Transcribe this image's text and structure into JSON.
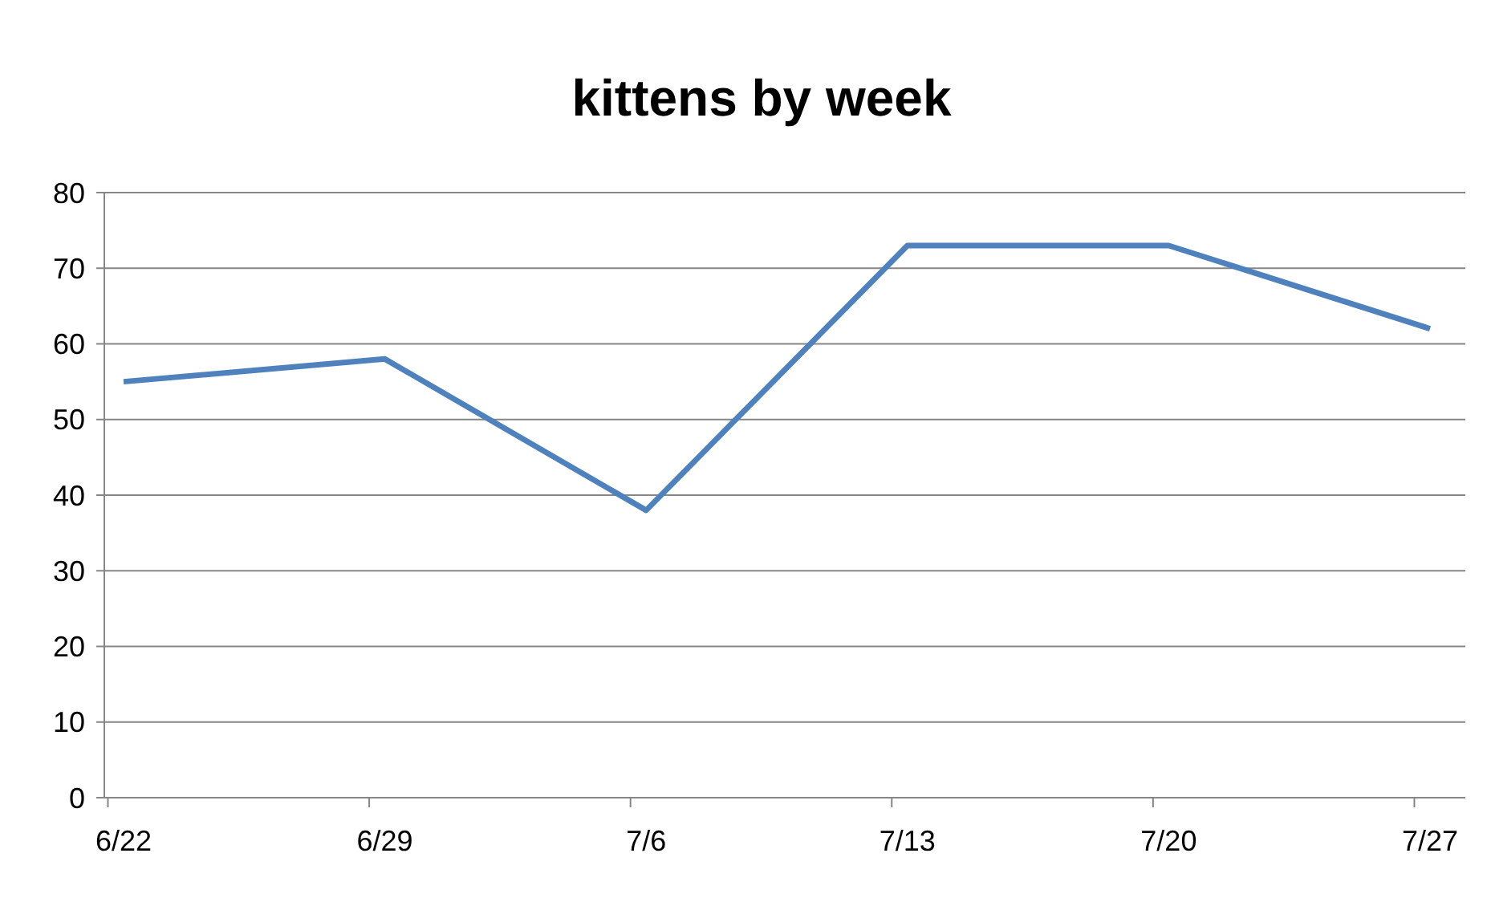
{
  "chart_data": {
    "type": "line",
    "title": "kittens by week",
    "categories": [
      "6/22",
      "6/29",
      "7/6",
      "7/13",
      "7/20",
      "7/27"
    ],
    "series": [
      {
        "color": "#4f81bd",
        "values": [
          55,
          58,
          38,
          73,
          73,
          62
        ]
      }
    ],
    "ylim": [
      0,
      80
    ],
    "yticks": [
      0,
      10,
      20,
      30,
      40,
      50,
      60,
      70,
      80
    ],
    "grid": "y",
    "marker": "none",
    "line_style": "solid"
  }
}
